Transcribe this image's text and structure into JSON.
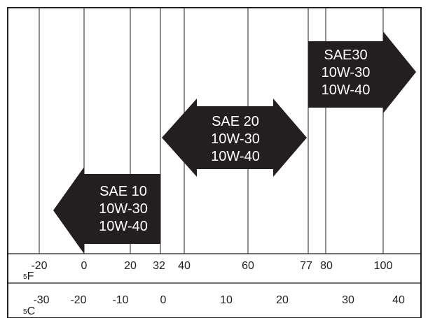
{
  "chart": {
    "grid_lines_f": [
      -20,
      0,
      20,
      32,
      40,
      60,
      77,
      80,
      100
    ],
    "fahrenheit": {
      "unit_marker": "5",
      "unit_letter": "F",
      "ticks": [
        {
          "value": -20,
          "label": "-20"
        },
        {
          "value": 0,
          "label": "0"
        },
        {
          "value": 20,
          "label": "20"
        },
        {
          "value": 32,
          "label": "32"
        },
        {
          "value": 40,
          "label": "40"
        },
        {
          "value": 60,
          "label": "60"
        },
        {
          "value": 77,
          "label": "77"
        },
        {
          "value": 80,
          "label": "80"
        },
        {
          "value": 100,
          "label": "100"
        }
      ]
    },
    "celsius": {
      "unit_marker": "5",
      "unit_letter": "C",
      "ticks": [
        {
          "value": -30,
          "label": "-30"
        },
        {
          "value": -20,
          "label": "-20"
        },
        {
          "value": -10,
          "label": "-10"
        },
        {
          "value": 0,
          "label": "0"
        },
        {
          "value": 10,
          "label": "10"
        },
        {
          "value": 20,
          "label": "20"
        },
        {
          "value": 30,
          "label": "30"
        },
        {
          "value": 40,
          "label": "40"
        }
      ]
    },
    "ranges": [
      {
        "name": "range-low",
        "from_f": null,
        "to_f": 32,
        "lines": [
          "SAE 10",
          "10W-30",
          "10W-40"
        ]
      },
      {
        "name": "range-mid",
        "from_f": 32,
        "to_f": 77,
        "lines": [
          "SAE 20",
          "10W-30",
          "10W-40"
        ]
      },
      {
        "name": "range-high",
        "from_f": 77,
        "to_f": null,
        "lines": [
          "SAE30",
          "10W-30",
          "10W-40"
        ]
      }
    ],
    "colors": {
      "ink": "#231f20",
      "arrow_fill": "#231f20",
      "arrow_text": "#ffffff",
      "background": "#ffffff"
    }
  }
}
